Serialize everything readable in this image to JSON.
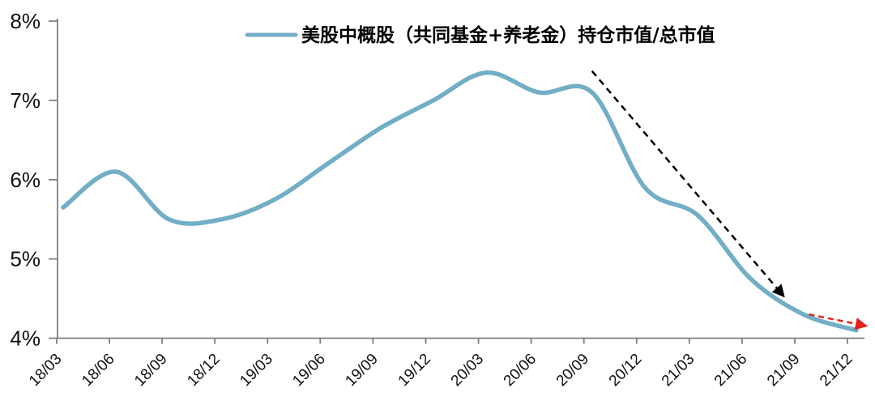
{
  "chart_data": {
    "type": "line",
    "title": "",
    "legend_label": "美股中概股（共同基金+养老金）持仓市值/总市值",
    "legend_position": "top-center",
    "grid": false,
    "xlabel": "",
    "ylabel": "",
    "ylim": [
      4,
      8
    ],
    "y_tick_format": "percent",
    "y_ticks": [
      {
        "label": "8%",
        "value": 8
      },
      {
        "label": "7%",
        "value": 7
      },
      {
        "label": "6%",
        "value": 6
      },
      {
        "label": "5%",
        "value": 5
      },
      {
        "label": "4%",
        "value": 4
      }
    ],
    "categories": [
      "18/03",
      "18/06",
      "18/09",
      "18/12",
      "19/03",
      "19/06",
      "19/09",
      "19/12",
      "20/03",
      "20/06",
      "20/09",
      "20/12",
      "21/03",
      "21/06",
      "21/09",
      "21/12"
    ],
    "series": [
      {
        "name": "美股中概股（共同基金+养老金）持仓市值/总市值",
        "color": "#72AEC6",
        "values": [
          5.65,
          6.1,
          5.5,
          5.5,
          5.75,
          6.2,
          6.65,
          7.0,
          7.35,
          7.1,
          7.1,
          5.9,
          5.55,
          4.75,
          4.3,
          4.1
        ]
      }
    ],
    "annotations": [
      {
        "name": "decline-trend-arrow",
        "type": "arrow",
        "style": "dashed",
        "color": "#000000",
        "dash": "8 6",
        "from": {
          "x_index": 10.0,
          "value": 7.37
        },
        "to": {
          "x_index": 13.6,
          "value": 4.55
        }
      },
      {
        "name": "flattening-trend-arrow",
        "type": "arrow",
        "style": "dashed",
        "color": "#E2231A",
        "dash": "7 5",
        "from": {
          "x_index": 14.1,
          "value": 4.3
        },
        "to": {
          "x_index": 15.15,
          "value": 4.16
        }
      }
    ]
  }
}
